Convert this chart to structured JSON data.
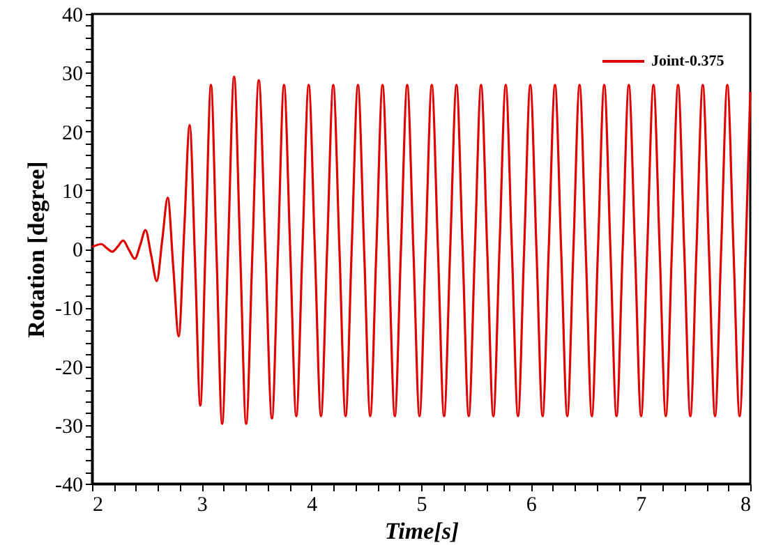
{
  "chart_data": {
    "type": "line",
    "xlabel": "Time[s]",
    "ylabel": "Rotation [degree]",
    "xlim": [
      2,
      8
    ],
    "ylim": [
      -40,
      40
    ],
    "xticks": [
      2,
      {
        "value": 2.2,
        "label": null
      },
      {
        "value": 2.4,
        "label": null
      },
      {
        "value": 2.6,
        "label": null
      },
      {
        "value": 2.8,
        "label": null
      },
      3,
      {
        "value": 3.2,
        "label": null
      },
      {
        "value": 3.4,
        "label": null
      },
      {
        "value": 3.6,
        "label": null
      },
      {
        "value": 3.8,
        "label": null
      },
      4,
      {
        "value": 4.2,
        "label": null
      },
      {
        "value": 4.4,
        "label": null
      },
      {
        "value": 4.6,
        "label": null
      },
      {
        "value": 4.8,
        "label": null
      },
      5,
      {
        "value": 5.2,
        "label": null
      },
      {
        "value": 5.4,
        "label": null
      },
      {
        "value": 5.6,
        "label": null
      },
      {
        "value": 5.8,
        "label": null
      },
      6,
      {
        "value": 6.2,
        "label": null
      },
      {
        "value": 6.4,
        "label": null
      },
      {
        "value": 6.6,
        "label": null
      },
      {
        "value": 6.8,
        "label": null
      },
      7,
      {
        "value": 7.2,
        "label": null
      },
      {
        "value": 7.4,
        "label": null
      },
      {
        "value": 7.6,
        "label": null
      },
      {
        "value": 7.8,
        "label": null
      },
      8
    ],
    "yticks": [
      -40,
      {
        "value": -38,
        "label": null
      },
      {
        "value": -36,
        "label": null
      },
      {
        "value": -34,
        "label": null
      },
      {
        "value": -32,
        "label": null
      },
      -30,
      {
        "value": -28,
        "label": null
      },
      {
        "value": -26,
        "label": null
      },
      {
        "value": -24,
        "label": null
      },
      {
        "value": -22,
        "label": null
      },
      -20,
      {
        "value": -18,
        "label": null
      },
      {
        "value": -16,
        "label": null
      },
      {
        "value": -14,
        "label": null
      },
      {
        "value": -12,
        "label": null
      },
      -10,
      {
        "value": -8,
        "label": null
      },
      {
        "value": -6,
        "label": null
      },
      {
        "value": -4,
        "label": null
      },
      {
        "value": -2,
        "label": null
      },
      0,
      {
        "value": 2,
        "label": null
      },
      {
        "value": 4,
        "label": null
      },
      {
        "value": 6,
        "label": null
      },
      {
        "value": 8,
        "label": null
      },
      10,
      {
        "value": 12,
        "label": null
      },
      {
        "value": 14,
        "label": null
      },
      {
        "value": 16,
        "label": null
      },
      {
        "value": 18,
        "label": null
      },
      20,
      {
        "value": 22,
        "label": null
      },
      {
        "value": 24,
        "label": null
      },
      {
        "value": 26,
        "label": null
      },
      {
        "value": 28,
        "label": null
      },
      30,
      {
        "value": 32,
        "label": null
      },
      {
        "value": 34,
        "label": null
      },
      {
        "value": 36,
        "label": null
      },
      {
        "value": 38,
        "label": null
      },
      40
    ],
    "grid": false,
    "legend": "top right",
    "marker": "none",
    "line_style": "solid",
    "series": [
      {
        "name": "Joint-0.375",
        "color": "#e00000",
        "x": [
          2.0,
          2.085,
          2.135,
          2.185,
          2.235,
          2.283,
          2.337,
          2.39,
          2.44,
          2.487,
          2.54,
          2.59,
          2.64,
          2.69,
          2.74,
          2.79,
          2.84,
          2.89,
          2.94,
          2.987,
          3.035,
          3.084,
          3.135,
          3.186,
          3.24,
          3.295,
          3.35,
          3.405,
          3.462,
          3.52,
          3.58,
          3.64,
          3.695,
          3.75,
          3.806,
          3.862,
          3.918,
          3.975,
          4.031,
          4.087,
          4.143,
          4.199,
          4.255,
          4.311,
          4.367,
          4.424,
          4.48,
          4.536,
          4.592,
          4.648,
          4.704,
          4.76,
          4.816,
          4.873,
          4.929,
          4.985,
          5.041,
          5.097,
          5.153,
          5.209,
          5.265,
          5.322,
          5.378,
          5.434,
          5.49,
          5.546,
          5.602,
          5.658,
          5.714,
          5.771,
          5.827,
          5.883,
          5.939,
          5.995,
          6.051,
          6.107,
          6.163,
          6.22,
          6.276,
          6.332,
          6.388,
          6.444,
          6.5,
          6.556,
          6.612,
          6.669,
          6.725,
          6.781,
          6.837,
          6.893,
          6.949,
          7.005,
          7.061,
          7.118,
          7.174,
          7.23,
          7.286,
          7.342,
          7.398,
          7.454,
          7.51,
          7.567,
          7.623,
          7.679,
          7.735,
          7.791,
          7.847,
          7.903,
          7.959,
          8.0
        ],
        "values": [
          0.3,
          0.8,
          0.1,
          -0.5,
          0.4,
          1.4,
          -0.2,
          -1.7,
          0.7,
          3.2,
          -1.2,
          -5.5,
          1.5,
          8.7,
          -3,
          -14.9,
          3,
          21.1,
          -2.8,
          -26.7,
          0.6,
          27.9,
          -1,
          -29.8,
          -0.2,
          29.3,
          -0.2,
          -29.8,
          -0.5,
          28.7,
          -0.1,
          -28.9,
          -0.5,
          27.9,
          0,
          -28.5,
          0,
          27.9,
          0,
          -28.5,
          0,
          27.9,
          0,
          -28.5,
          0,
          27.9,
          0,
          -28.5,
          0,
          27.9,
          0,
          -28.5,
          0,
          27.9,
          0,
          -28.5,
          0,
          27.9,
          0,
          -28.5,
          0,
          27.9,
          0,
          -28.5,
          0,
          27.9,
          0,
          -28.5,
          0,
          27.9,
          0,
          -28.5,
          0,
          27.9,
          0,
          -28.5,
          0,
          27.9,
          0,
          -28.5,
          0,
          27.9,
          0,
          -28.5,
          0,
          27.9,
          0,
          -28.5,
          0,
          27.9,
          0,
          -28.5,
          0,
          27.9,
          0,
          -28.5,
          0,
          27.9,
          0,
          -28.5,
          0,
          27.9,
          0,
          -28.5,
          0,
          27.9,
          0,
          -28.5,
          0,
          26.7
        ]
      }
    ]
  }
}
